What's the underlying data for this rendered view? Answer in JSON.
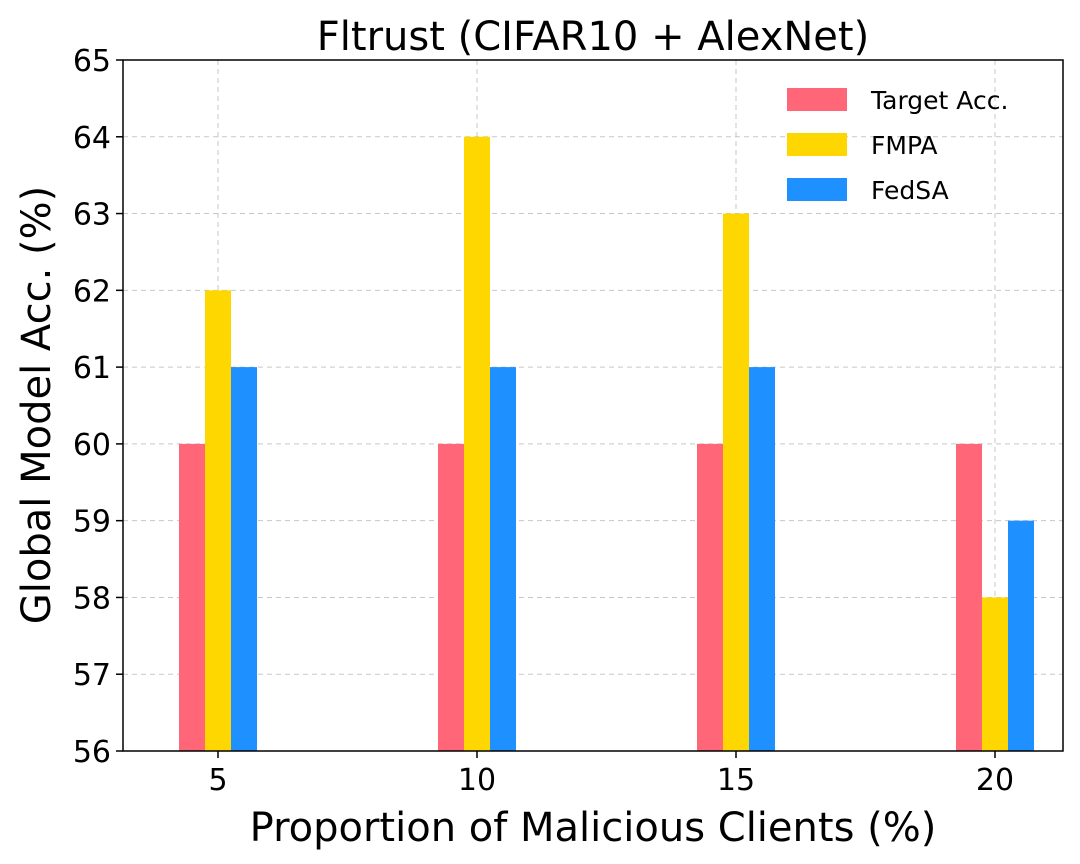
{
  "chart_data": {
    "type": "bar",
    "title": "Fltrust (CIFAR10 + AlexNet)",
    "xlabel": "Proportion of Malicious Clients (%)",
    "ylabel": "Global Model Acc. (%)",
    "categories": [
      "5",
      "10",
      "15",
      "20"
    ],
    "ylim": [
      56,
      65
    ],
    "yticks": [
      56,
      57,
      58,
      59,
      60,
      61,
      62,
      63,
      64,
      65
    ],
    "grid": true,
    "legend_position": "top-right",
    "series": [
      {
        "name": "Target Acc.",
        "color": "#ff6677",
        "values": [
          60,
          60,
          60,
          60
        ]
      },
      {
        "name": "FMPA",
        "color": "#ffd700",
        "values": [
          62,
          64,
          63,
          58
        ]
      },
      {
        "name": "FedSA",
        "color": "#1e90ff",
        "values": [
          61,
          61,
          61,
          59
        ]
      }
    ]
  }
}
